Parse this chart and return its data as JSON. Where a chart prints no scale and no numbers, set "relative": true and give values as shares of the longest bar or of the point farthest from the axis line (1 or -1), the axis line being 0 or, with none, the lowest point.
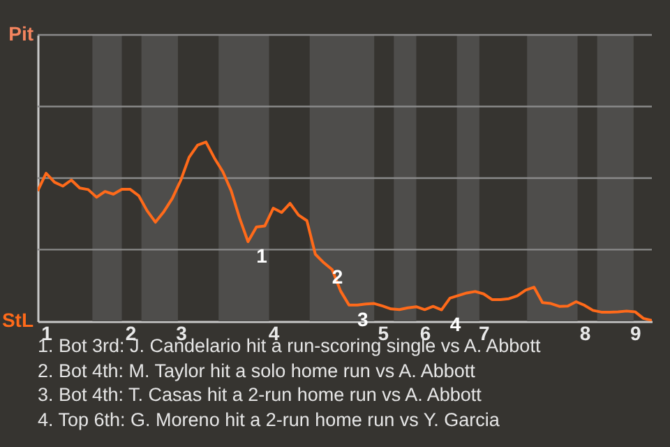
{
  "chart_data": {
    "type": "line",
    "relative": true,
    "categories": [
      null,
      "1",
      null,
      null,
      null,
      null,
      null,
      null,
      null,
      null,
      null,
      "2",
      null,
      null,
      null,
      null,
      null,
      "3",
      null,
      null,
      null,
      null,
      null,
      null,
      null,
      null,
      null,
      null,
      "4",
      null,
      null,
      null,
      null,
      null,
      null,
      null,
      null,
      null,
      null,
      null,
      null,
      "5",
      null,
      null,
      null,
      null,
      "6",
      null,
      null,
      null,
      null,
      null,
      null,
      "7",
      null,
      null,
      null,
      null,
      null,
      null,
      null,
      null,
      null,
      null,
      null,
      "8",
      null,
      null,
      null,
      null,
      null,
      "9",
      null,
      null
    ],
    "y_categories": [
      "Pit",
      "StL"
    ],
    "series": [
      {
        "color": "#ff6a1a",
        "values": [
          0.727,
          0.826,
          0.776,
          0.754,
          0.788,
          0.743,
          0.735,
          0.692,
          0.724,
          0.709,
          0.736,
          0.736,
          0.701,
          0.617,
          0.553,
          0.612,
          0.685,
          0.786,
          0.915,
          0.982,
          1,
          0.911,
          0.835,
          0.728,
          0.575,
          0.444,
          0.526,
          0.532,
          0.631,
          0.607,
          0.658,
          0.593,
          0.561,
          0.374,
          0.327,
          0.288,
          0.169,
          0.091,
          0.091,
          0.096,
          0.099,
          0.085,
          0.069,
          0.065,
          0.075,
          0.081,
          0.065,
          0.083,
          0.064,
          0.129,
          0.144,
          0.158,
          0.166,
          0.153,
          0.121,
          0.121,
          0.126,
          0.142,
          0.174,
          0.19,
          0.104,
          0.099,
          0.083,
          0.085,
          0.109,
          0.089,
          0.061,
          0.051,
          0.051,
          0.053,
          0.057,
          0.053,
          0.016,
          0.005
        ]
      }
    ],
    "ref_lines": [
      {
        "axis": "y",
        "value": 0.4,
        "color": "#8a8a8a"
      },
      {
        "axis": "y",
        "value": 0.799,
        "color": "#8a8a8a"
      },
      {
        "axis": "y",
        "value": 1.198,
        "color": "#8a8a8a"
      }
    ],
    "annotations": [
      "1",
      "2",
      "3",
      "4",
      "1. Bot 3rd: J. Candelario hit a run-scoring single vs A. Abbott",
      "2. Bot 4th: M. Taylor hit a solo home run vs A. Abbott",
      "3. Bot 4th: T. Casas hit a 2-run home run vs A. Abbott",
      "4. Top 6th: G. Moreno hit a 2-run home run vs Y. Garcia"
    ]
  }
}
